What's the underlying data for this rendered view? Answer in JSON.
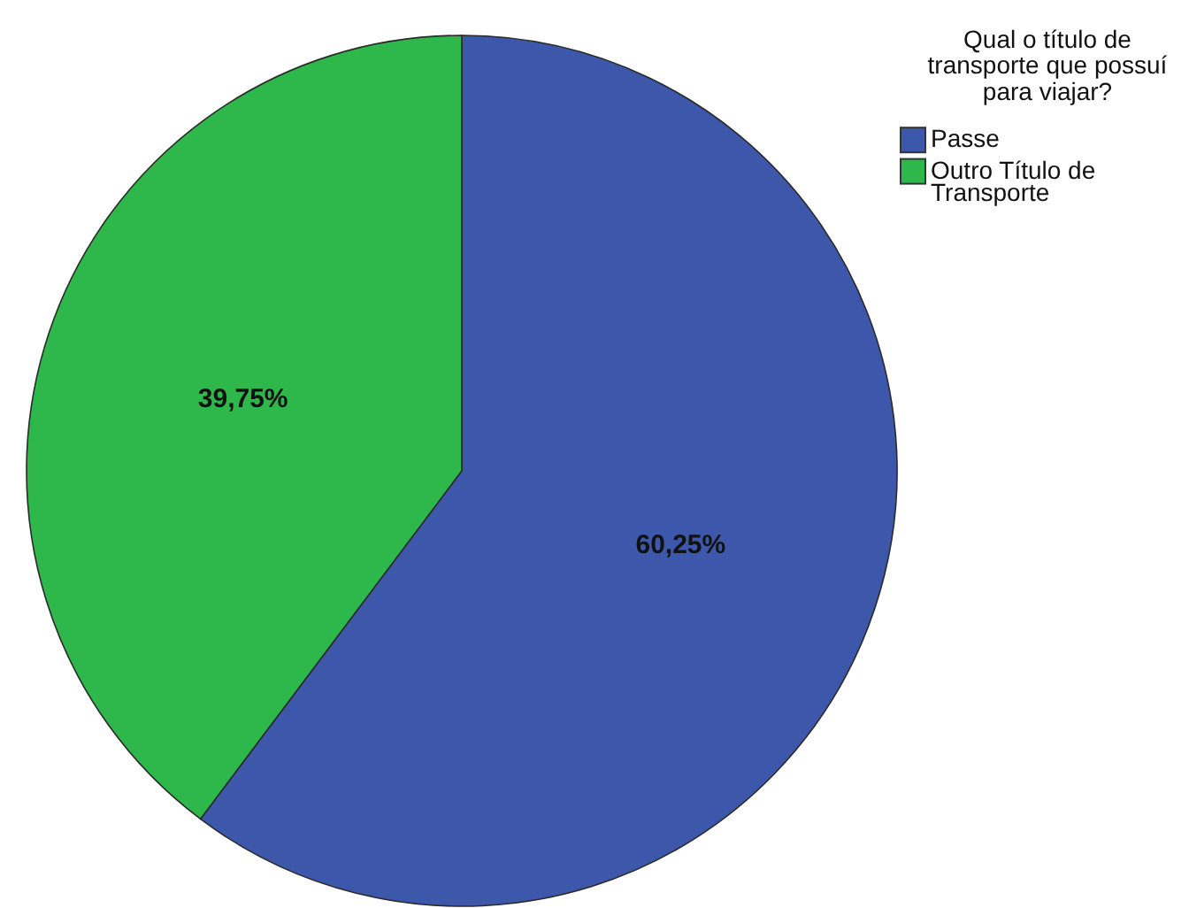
{
  "chart_data": {
    "type": "pie",
    "legend_title": "Qual o título de transporte que possuí para viajar?",
    "legend": "top right",
    "categories": [
      "Passe",
      "Outro Título de Transporte"
    ],
    "values": [
      60.25,
      39.75
    ],
    "colors": [
      "#3d58aa",
      "#2eb84b"
    ],
    "value_labels": [
      "60,25%",
      "39,75%"
    ]
  }
}
